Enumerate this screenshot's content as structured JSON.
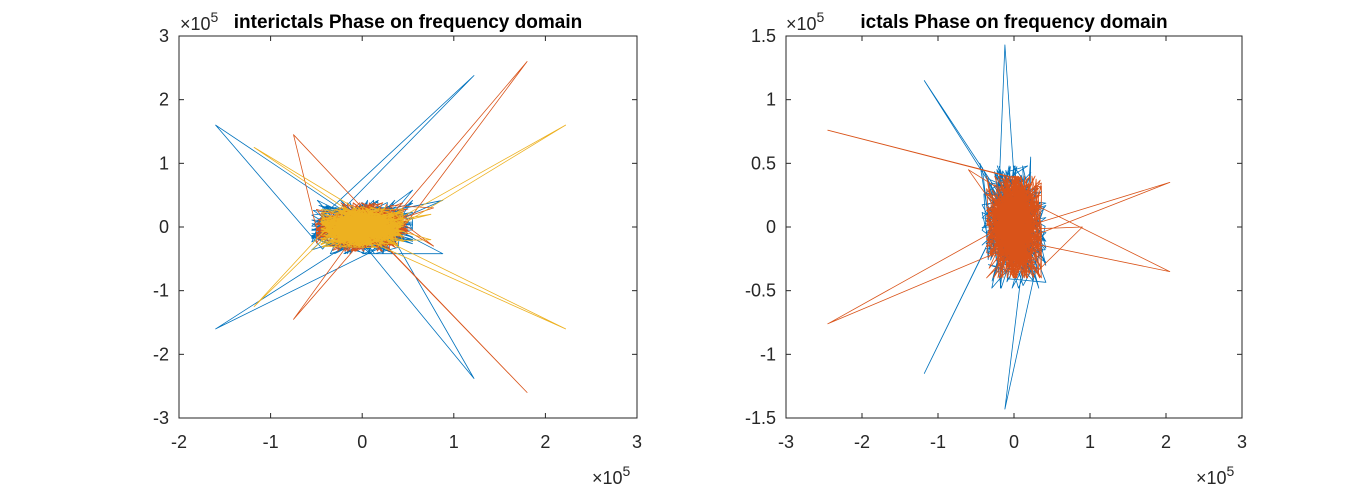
{
  "chart_data": [
    {
      "type": "line",
      "title": "interictals Phase on frequency domain",
      "xlim": [
        -2,
        3
      ],
      "ylim": [
        -3,
        3
      ],
      "xticks": [
        "-2",
        "-1",
        "0",
        "1",
        "2",
        "3"
      ],
      "yticks": [
        "-3",
        "-2",
        "-1",
        "0",
        "1",
        "2",
        "3"
      ],
      "x_multiplier": "×10^5",
      "y_multiplier": "×10^5",
      "grid": false,
      "box": true,
      "series": [
        {
          "color": "#0072BD",
          "seed": 11,
          "cloud": {
            "rx": 0.55,
            "ry": 0.42,
            "n": 500,
            "cx": 0,
            "cy": 0
          },
          "spikes": [
            [
              1.22,
              2.38
            ],
            [
              1.22,
              -2.38
            ],
            [
              -1.6,
              1.6
            ],
            [
              -1.6,
              -1.6
            ],
            [
              0.88,
              0.42
            ],
            [
              0.88,
              -0.42
            ],
            [
              0.55,
              0.58
            ]
          ]
        },
        {
          "color": "#D95319",
          "seed": 23,
          "cloud": {
            "rx": 0.5,
            "ry": 0.38,
            "n": 450,
            "cx": 0,
            "cy": 0
          },
          "spikes": [
            [
              1.8,
              2.6
            ],
            [
              1.8,
              -2.6
            ],
            [
              -0.75,
              1.45
            ],
            [
              -0.75,
              -1.45
            ],
            [
              0.78,
              0.3
            ],
            [
              0.78,
              -0.3
            ]
          ]
        },
        {
          "color": "#EDB120",
          "seed": 37,
          "cloud": {
            "rx": 0.45,
            "ry": 0.32,
            "n": 700,
            "cx": 0,
            "cy": 0
          },
          "spikes": [
            [
              2.22,
              1.6
            ],
            [
              2.22,
              -1.6
            ],
            [
              -1.18,
              1.25
            ],
            [
              -1.18,
              -1.25
            ],
            [
              0.75,
              0.2
            ],
            [
              0.75,
              -0.2
            ]
          ]
        }
      ]
    },
    {
      "type": "line",
      "title": "ictals Phase on frequency domain",
      "xlim": [
        -3,
        3
      ],
      "ylim": [
        -1.5,
        1.5
      ],
      "xticks": [
        "-3",
        "-2",
        "-1",
        "0",
        "1",
        "2",
        "3"
      ],
      "yticks": [
        "-1.5",
        "-1",
        "-0.5",
        "0",
        "0.5",
        "1",
        "1.5"
      ],
      "x_multiplier": "×10^5",
      "y_multiplier": "×10^5",
      "grid": false,
      "box": true,
      "series": [
        {
          "color": "#0072BD",
          "seed": 51,
          "cloud": {
            "rx": 0.42,
            "ry": 0.48,
            "n": 360,
            "cx": 0,
            "cy": 0
          },
          "spikes": [
            [
              -0.12,
              1.43
            ],
            [
              -0.12,
              -1.43
            ],
            [
              -1.18,
              1.15
            ],
            [
              -1.18,
              -1.15
            ],
            [
              0.22,
              0.55
            ],
            [
              -0.45,
              0.5
            ]
          ]
        },
        {
          "color": "#D95319",
          "seed": 67,
          "cloud": {
            "rx": 0.36,
            "ry": 0.4,
            "n": 900,
            "cx": 0,
            "cy": 0
          },
          "spikes": [
            [
              -2.45,
              0.76
            ],
            [
              -2.45,
              -0.76
            ],
            [
              2.05,
              0.35
            ],
            [
              2.05,
              -0.35
            ],
            [
              0.9,
              0.0
            ],
            [
              -0.6,
              0.45
            ]
          ]
        }
      ]
    }
  ]
}
